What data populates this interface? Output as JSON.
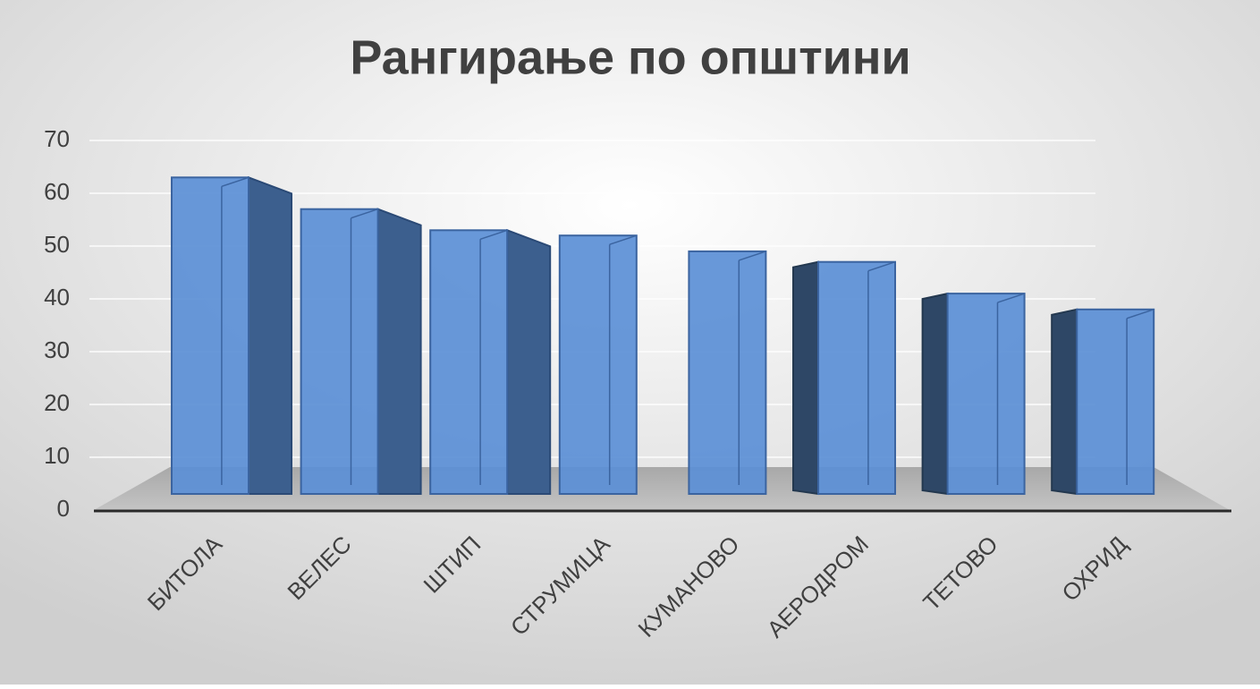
{
  "chart_data": {
    "type": "bar3d",
    "title": "Рангирање по општини",
    "categories": [
      "БИТОЛА",
      "ВЕЛЕС",
      "ШТИП",
      "СТРУМИЦА",
      "КУМАНОВО",
      "АЕРОДРОМ",
      "ТЕТОВО",
      "ОХРИД"
    ],
    "values": [
      63,
      57,
      53,
      52,
      49,
      47,
      41,
      38
    ],
    "color": "#5b8fd6",
    "ylim": [
      0,
      70
    ],
    "yticks": [
      0,
      10,
      20,
      30,
      40,
      50,
      60,
      70
    ],
    "grid": true
  }
}
